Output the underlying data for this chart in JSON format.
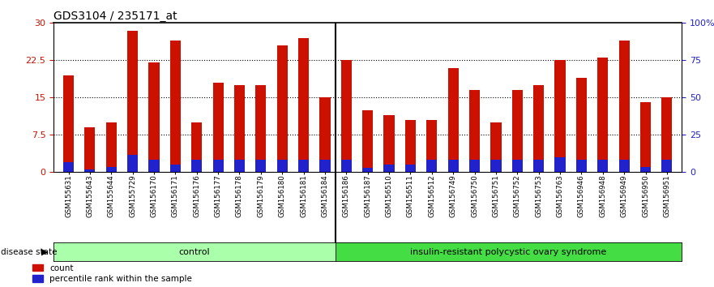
{
  "title": "GDS3104 / 235171_at",
  "samples": [
    "GSM155631",
    "GSM155643",
    "GSM155644",
    "GSM155729",
    "GSM156170",
    "GSM156171",
    "GSM156176",
    "GSM156177",
    "GSM156178",
    "GSM156179",
    "GSM156180",
    "GSM156181",
    "GSM156184",
    "GSM156186",
    "GSM156187",
    "GSM156510",
    "GSM156511",
    "GSM156512",
    "GSM156749",
    "GSM156750",
    "GSM156751",
    "GSM156752",
    "GSM156753",
    "GSM156763",
    "GSM156946",
    "GSM156948",
    "GSM156949",
    "GSM156950",
    "GSM156951"
  ],
  "red_values": [
    19.5,
    9.0,
    10.0,
    28.5,
    22.0,
    26.5,
    10.0,
    18.0,
    17.5,
    17.5,
    25.5,
    27.0,
    15.0,
    22.5,
    12.5,
    11.5,
    10.5,
    10.5,
    21.0,
    16.5,
    10.0,
    16.5,
    17.5,
    22.5,
    19.0,
    23.0,
    26.5,
    14.0,
    15.0
  ],
  "blue_values": [
    2.0,
    0.5,
    1.0,
    3.5,
    2.5,
    1.5,
    2.5,
    2.5,
    2.5,
    2.5,
    2.5,
    2.5,
    2.5,
    2.5,
    0.8,
    1.5,
    1.5,
    2.5,
    2.5,
    2.5,
    2.5,
    2.5,
    2.5,
    3.0,
    2.5,
    2.5,
    2.5,
    1.0,
    2.5
  ],
  "control_count": 13,
  "bar_width": 0.5,
  "ylim": [
    0,
    30
  ],
  "yticks_left": [
    0,
    7.5,
    15,
    22.5,
    30
  ],
  "yticks_right": [
    0,
    25,
    50,
    75,
    100
  ],
  "ytick_labels_left": [
    "0",
    "7.5",
    "15",
    "22.5",
    "30"
  ],
  "ytick_labels_right": [
    "0",
    "25",
    "50",
    "75",
    "100%"
  ],
  "grid_lines": [
    7.5,
    15,
    22.5
  ],
  "red_color": "#CC1100",
  "blue_color": "#2222CC",
  "control_label": "control",
  "disease_label": "insulin-resistant polycystic ovary syndrome",
  "disease_state_label": "disease state",
  "legend_count": "count",
  "legend_percentile": "percentile rank within the sample",
  "control_bg": "#AAFFAA",
  "disease_bg": "#44DD44",
  "xtick_bg": "#CCCCCC",
  "title_fontsize": 10,
  "tick_fontsize": 8
}
